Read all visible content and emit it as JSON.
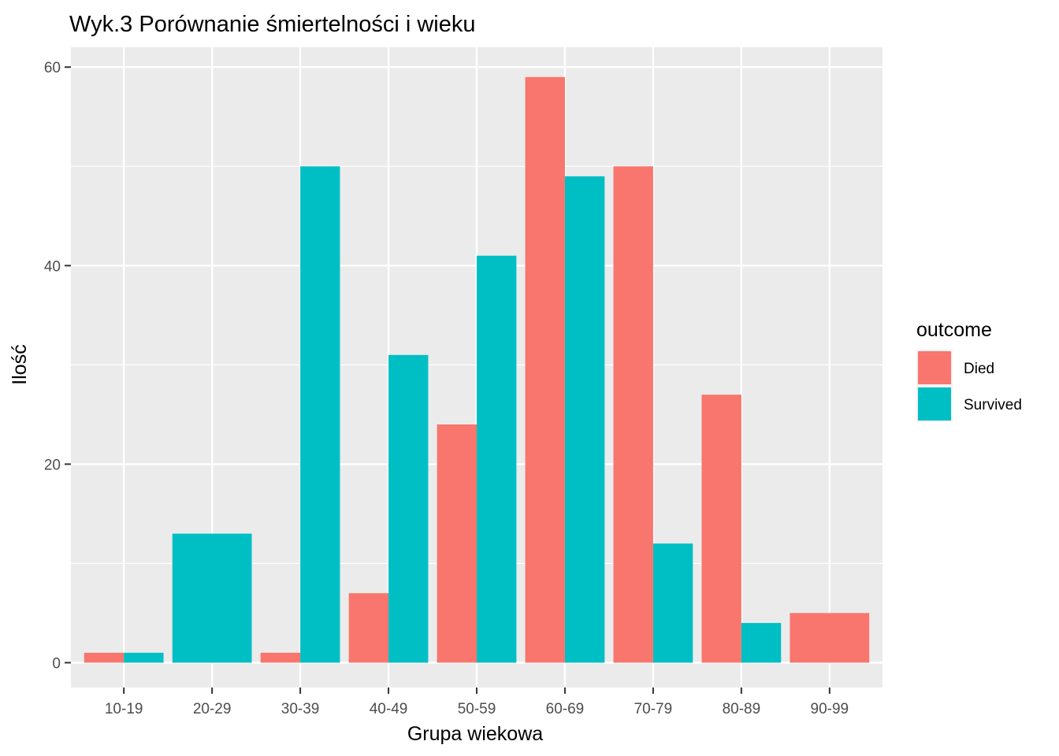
{
  "chart_data": {
    "type": "bar",
    "title": "Wyk.3 Porównanie śmiertelności i wieku",
    "xlabel": "Grupa wiekowa",
    "ylabel": "Ilość",
    "categories": [
      "10-19",
      "20-29",
      "30-39",
      "40-49",
      "50-59",
      "60-69",
      "70-79",
      "80-89",
      "90-99"
    ],
    "series": [
      {
        "name": "Died",
        "color": "#F8766D",
        "values": [
          1,
          null,
          1,
          7,
          24,
          59,
          50,
          27,
          5
        ]
      },
      {
        "name": "Survived",
        "color": "#00BFC4",
        "values": [
          1,
          13,
          50,
          31,
          41,
          49,
          12,
          4,
          null
        ]
      }
    ],
    "yticks": [
      0,
      20,
      40,
      60
    ],
    "ylim": [
      -2.5,
      62
    ],
    "grid": true,
    "legend": {
      "title": "outcome",
      "position": "right"
    },
    "panel_background": "#EBEBEB",
    "gridline_color": "#FFFFFF"
  }
}
